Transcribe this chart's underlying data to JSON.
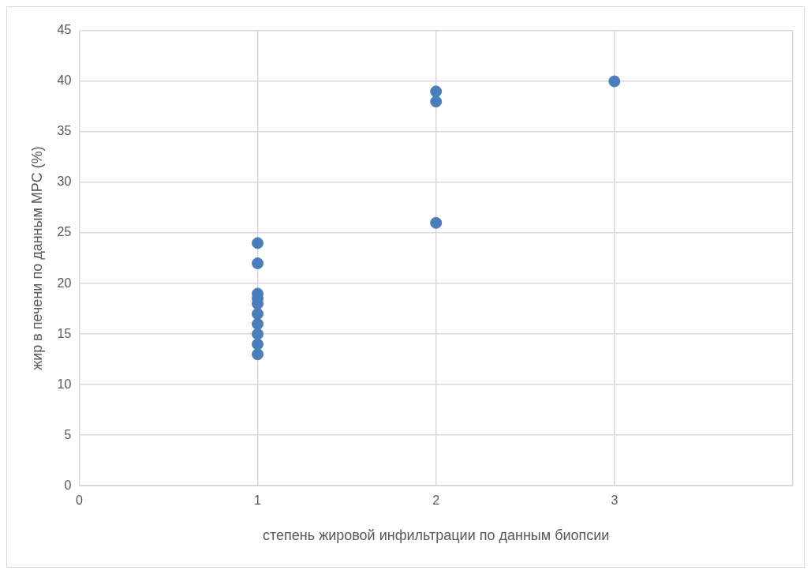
{
  "chart_data": {
    "type": "scatter",
    "xlabel": "степень жировой инфильтрации по данным биопсии",
    "ylabel": "жир в печени по данным МРС (%)",
    "x": [
      1,
      1,
      1,
      1,
      1,
      1,
      1,
      1,
      1,
      1,
      2,
      2,
      2,
      3
    ],
    "series": [
      {
        "color": "#4a7ebb",
        "values": [
          24,
          22,
          19,
          18.5,
          18,
          17,
          16,
          15,
          14,
          13,
          39,
          38,
          26,
          40
        ]
      }
    ],
    "xlim": [
      0,
      4
    ],
    "xticks": [
      0,
      1,
      2,
      3,
      {
        "value": 4,
        "label": null
      }
    ],
    "ylim": [
      0,
      45
    ],
    "yticks": [
      0,
      5,
      10,
      15,
      20,
      25,
      30,
      35,
      40,
      45
    ],
    "grid": true,
    "marker": "circle"
  }
}
